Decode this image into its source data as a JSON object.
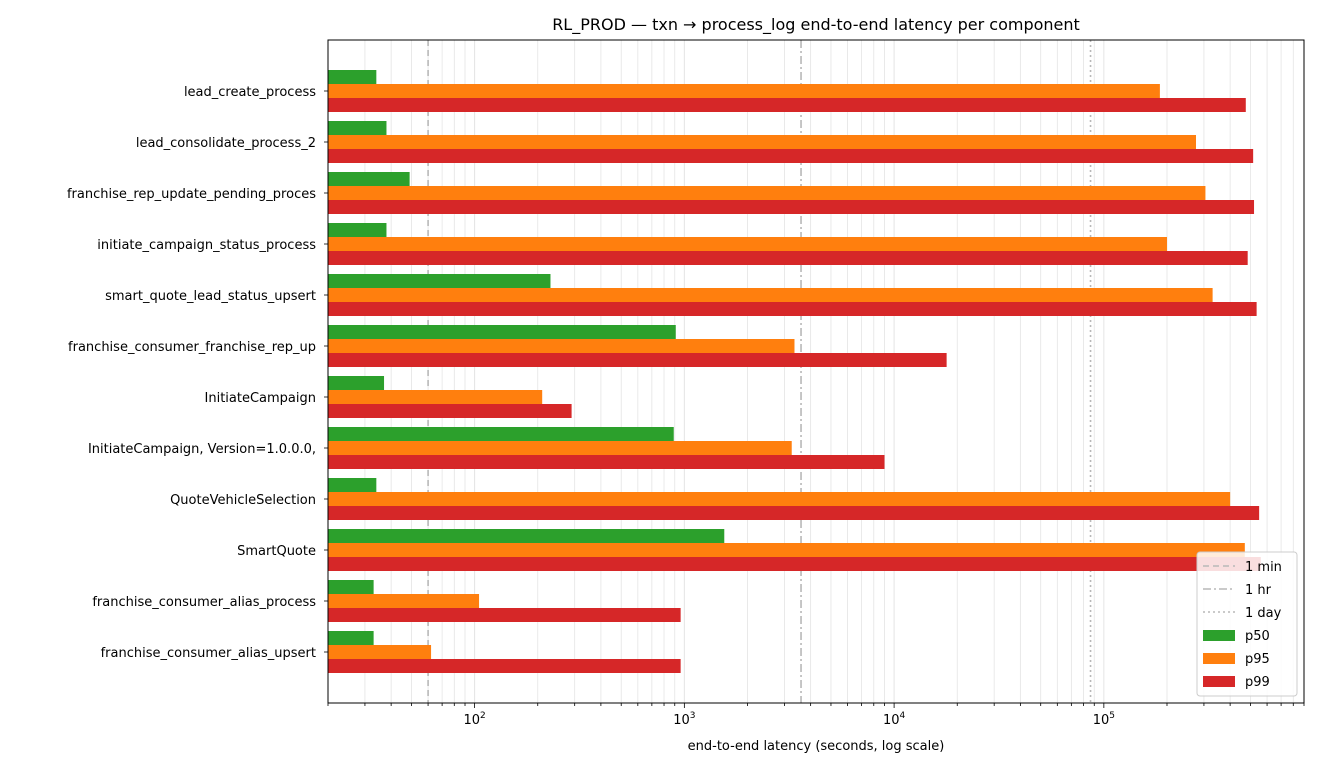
{
  "chart_data": {
    "type": "bar",
    "orientation": "horizontal",
    "title": "RL_PROD — txn → process_log end-to-end latency per component",
    "xlabel": "end-to-end latency (seconds, log scale)",
    "ylabel": "",
    "xscale": "log",
    "xlim": [
      20,
      900000
    ],
    "x_ticks": [
      {
        "value": 100,
        "base": "10",
        "exp": "2"
      },
      {
        "value": 1000,
        "base": "10",
        "exp": "3"
      },
      {
        "value": 10000,
        "base": "10",
        "exp": "4"
      },
      {
        "value": 100000,
        "base": "10",
        "exp": "5"
      }
    ],
    "grid": "x-major-and-minor",
    "legend_position": "lower-right",
    "categories": [
      "lead_create_process",
      "lead_consolidate_process_2",
      "franchise_rep_update_pending_proces",
      "initiate_campaign_status_process",
      "smart_quote_lead_status_upsert",
      "franchise_consumer_franchise_rep_up",
      "InitiateCampaign",
      "InitiateCampaign, Version=1.0.0.0, ",
      "QuoteVehicleSelection",
      "SmartQuote",
      "franchise_consumer_alias_process",
      "franchise_consumer_alias_upsert"
    ],
    "series": [
      {
        "name": "p50",
        "color": "#2ca02c",
        "values": [
          34,
          38,
          49,
          38,
          230,
          910,
          37,
          890,
          34,
          1550,
          33,
          33
        ]
      },
      {
        "name": "p95",
        "color": "#ff7f0e",
        "values": [
          185000,
          275000,
          305000,
          200000,
          330000,
          3350,
          210,
          3250,
          400000,
          470000,
          105,
          62
        ]
      },
      {
        "name": "p99",
        "color": "#d62728",
        "values": [
          475000,
          515000,
          520000,
          485000,
          535000,
          17800,
          290,
          9000,
          550000,
          560000,
          960,
          960
        ]
      }
    ],
    "reference_lines": [
      {
        "name": "1 min",
        "value": 60,
        "style": "dashed",
        "color": "#b8b8b8"
      },
      {
        "name": "1 hr",
        "value": 3600,
        "style": "dashdot",
        "color": "#b8b8b8"
      },
      {
        "name": "1 day",
        "value": 86400,
        "style": "dotted",
        "color": "#b8b8b8"
      }
    ]
  }
}
